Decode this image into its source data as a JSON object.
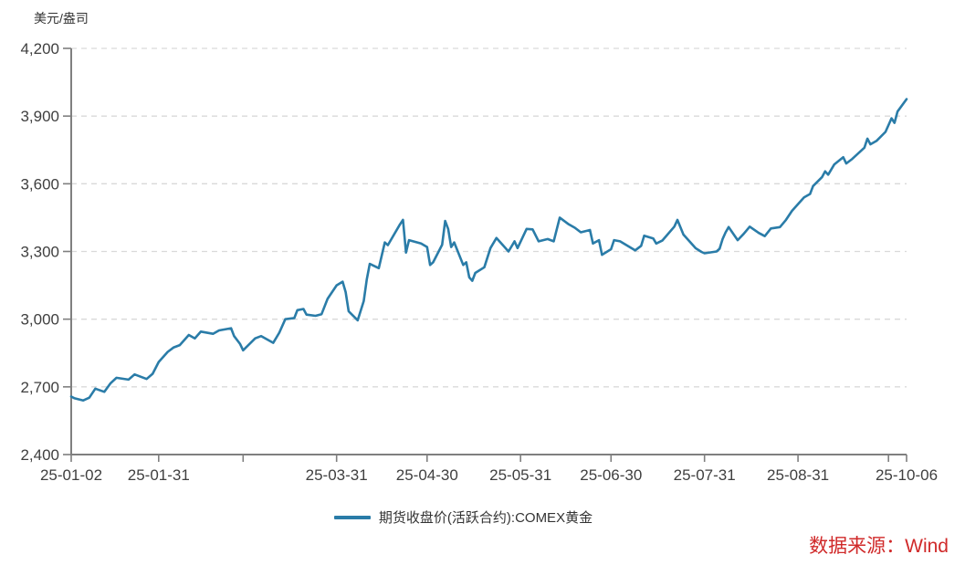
{
  "chart": {
    "unit_label": "美元/盎司",
    "legend_label": "期货收盘价(活跃合约):COMEX黄金",
    "source_label": "数据来源：Wind"
  },
  "colors": {
    "line": "#2a7ca8",
    "grid": "#d9d9d9",
    "axis": "#7f7f7f",
    "tick_text": "#3f3f3f",
    "source_red": "#d02a2a",
    "background": "#ffffff"
  },
  "chart_data": {
    "type": "line",
    "title": "",
    "ylabel": "美元/盎司",
    "xlabel": "",
    "grid": "horizontal-dashed",
    "legend_position": "bottom-center",
    "source": "数据来源：Wind",
    "y_axis": {
      "min": 2400,
      "max": 4200,
      "step": 300,
      "tick_labels": [
        "2,400",
        "2,700",
        "3,000",
        "3,300",
        "3,600",
        "3,900",
        "4,200"
      ]
    },
    "x_axis": {
      "ticks": [
        {
          "date": "25-01-02",
          "label": "25-01-02"
        },
        {
          "date": "25-01-31",
          "label": "25-01-31"
        },
        {
          "date": "25-02-28",
          "label": ""
        },
        {
          "date": "25-03-31",
          "label": "25-03-31"
        },
        {
          "date": "25-04-30",
          "label": "25-04-30"
        },
        {
          "date": "25-05-31",
          "label": "25-05-31"
        },
        {
          "date": "25-06-30",
          "label": "25-06-30"
        },
        {
          "date": "25-07-31",
          "label": "25-07-31"
        },
        {
          "date": "25-08-31",
          "label": "25-08-31"
        },
        {
          "date": "25-09-30",
          "label": ""
        },
        {
          "date": "25-10-06",
          "label": "25-10-06"
        }
      ]
    },
    "series": [
      {
        "name": "期货收盘价(活跃合约):COMEX黄金",
        "color": "#2a7ca8",
        "points": [
          [
            "25-01-02",
            2657
          ],
          [
            "25-01-03",
            2650
          ],
          [
            "25-01-06",
            2640
          ],
          [
            "25-01-08",
            2652
          ],
          [
            "25-01-10",
            2692
          ],
          [
            "25-01-13",
            2678
          ],
          [
            "25-01-15",
            2715
          ],
          [
            "25-01-17",
            2740
          ],
          [
            "25-01-21",
            2732
          ],
          [
            "25-01-23",
            2755
          ],
          [
            "25-01-27",
            2735
          ],
          [
            "25-01-29",
            2758
          ],
          [
            "25-01-31",
            2810
          ],
          [
            "25-02-03",
            2855
          ],
          [
            "25-02-05",
            2875
          ],
          [
            "25-02-07",
            2885
          ],
          [
            "25-02-10",
            2930
          ],
          [
            "25-02-12",
            2915
          ],
          [
            "25-02-14",
            2945
          ],
          [
            "25-02-18",
            2935
          ],
          [
            "25-02-20",
            2950
          ],
          [
            "25-02-24",
            2960
          ],
          [
            "25-02-25",
            2925
          ],
          [
            "25-02-27",
            2890
          ],
          [
            "25-02-28",
            2862
          ],
          [
            "25-03-04",
            2915
          ],
          [
            "25-03-06",
            2925
          ],
          [
            "25-03-10",
            2895
          ],
          [
            "25-03-12",
            2940
          ],
          [
            "25-03-14",
            3000
          ],
          [
            "25-03-17",
            3005
          ],
          [
            "25-03-18",
            3040
          ],
          [
            "25-03-20",
            3045
          ],
          [
            "25-03-21",
            3020
          ],
          [
            "25-03-24",
            3015
          ],
          [
            "25-03-26",
            3022
          ],
          [
            "25-03-28",
            3090
          ],
          [
            "25-03-31",
            3150
          ],
          [
            "25-04-02",
            3166
          ],
          [
            "25-04-03",
            3120
          ],
          [
            "25-04-04",
            3035
          ],
          [
            "25-04-07",
            2995
          ],
          [
            "25-04-09",
            3080
          ],
          [
            "25-04-10",
            3175
          ],
          [
            "25-04-11",
            3245
          ],
          [
            "25-04-14",
            3226
          ],
          [
            "25-04-16",
            3340
          ],
          [
            "25-04-17",
            3328
          ],
          [
            "25-04-21",
            3420
          ],
          [
            "25-04-22",
            3440
          ],
          [
            "25-04-23",
            3295
          ],
          [
            "25-04-24",
            3350
          ],
          [
            "25-04-28",
            3335
          ],
          [
            "25-04-30",
            3320
          ],
          [
            "25-05-01",
            3240
          ],
          [
            "25-05-02",
            3252
          ],
          [
            "25-05-05",
            3330
          ],
          [
            "25-05-06",
            3435
          ],
          [
            "25-05-07",
            3400
          ],
          [
            "25-05-08",
            3320
          ],
          [
            "25-05-09",
            3340
          ],
          [
            "25-05-12",
            3240
          ],
          [
            "25-05-13",
            3252
          ],
          [
            "25-05-14",
            3185
          ],
          [
            "25-05-15",
            3170
          ],
          [
            "25-05-16",
            3205
          ],
          [
            "25-05-19",
            3230
          ],
          [
            "25-05-21",
            3315
          ],
          [
            "25-05-23",
            3360
          ],
          [
            "25-05-27",
            3300
          ],
          [
            "25-05-29",
            3345
          ],
          [
            "25-05-30",
            3315
          ],
          [
            "25-06-02",
            3400
          ],
          [
            "25-06-04",
            3398
          ],
          [
            "25-06-06",
            3345
          ],
          [
            "25-06-09",
            3355
          ],
          [
            "25-06-11",
            3345
          ],
          [
            "25-06-13",
            3450
          ],
          [
            "25-06-16",
            3420
          ],
          [
            "25-06-18",
            3405
          ],
          [
            "25-06-20",
            3385
          ],
          [
            "25-06-23",
            3395
          ],
          [
            "25-06-24",
            3335
          ],
          [
            "25-06-26",
            3350
          ],
          [
            "25-06-27",
            3285
          ],
          [
            "25-06-30",
            3310
          ],
          [
            "25-07-01",
            3350
          ],
          [
            "25-07-03",
            3345
          ],
          [
            "25-07-08",
            3305
          ],
          [
            "25-07-10",
            3325
          ],
          [
            "25-07-11",
            3370
          ],
          [
            "25-07-14",
            3358
          ],
          [
            "25-07-15",
            3335
          ],
          [
            "25-07-17",
            3348
          ],
          [
            "25-07-21",
            3410
          ],
          [
            "25-07-22",
            3440
          ],
          [
            "25-07-24",
            3375
          ],
          [
            "25-07-28",
            3315
          ],
          [
            "25-07-30",
            3298
          ],
          [
            "25-07-31",
            3292
          ],
          [
            "25-08-04",
            3300
          ],
          [
            "25-08-05",
            3312
          ],
          [
            "25-08-06",
            3355
          ],
          [
            "25-08-07",
            3385
          ],
          [
            "25-08-08",
            3408
          ],
          [
            "25-08-11",
            3350
          ],
          [
            "25-08-13",
            3378
          ],
          [
            "25-08-15",
            3410
          ],
          [
            "25-08-18",
            3382
          ],
          [
            "25-08-20",
            3368
          ],
          [
            "25-08-22",
            3402
          ],
          [
            "25-08-25",
            3408
          ],
          [
            "25-08-27",
            3440
          ],
          [
            "25-08-29",
            3480
          ],
          [
            "25-09-02",
            3540
          ],
          [
            "25-09-04",
            3555
          ],
          [
            "25-09-05",
            3590
          ],
          [
            "25-09-08",
            3630
          ],
          [
            "25-09-09",
            3655
          ],
          [
            "25-09-10",
            3640
          ],
          [
            "25-09-12",
            3685
          ],
          [
            "25-09-15",
            3718
          ],
          [
            "25-09-16",
            3690
          ],
          [
            "25-09-18",
            3710
          ],
          [
            "25-09-22",
            3760
          ],
          [
            "25-09-23",
            3800
          ],
          [
            "25-09-24",
            3775
          ],
          [
            "25-09-26",
            3790
          ],
          [
            "25-09-29",
            3830
          ],
          [
            "25-09-30",
            3860
          ],
          [
            "25-10-01",
            3890
          ],
          [
            "25-10-02",
            3870
          ],
          [
            "25-10-03",
            3920
          ],
          [
            "25-10-06",
            3975
          ]
        ]
      }
    ]
  }
}
